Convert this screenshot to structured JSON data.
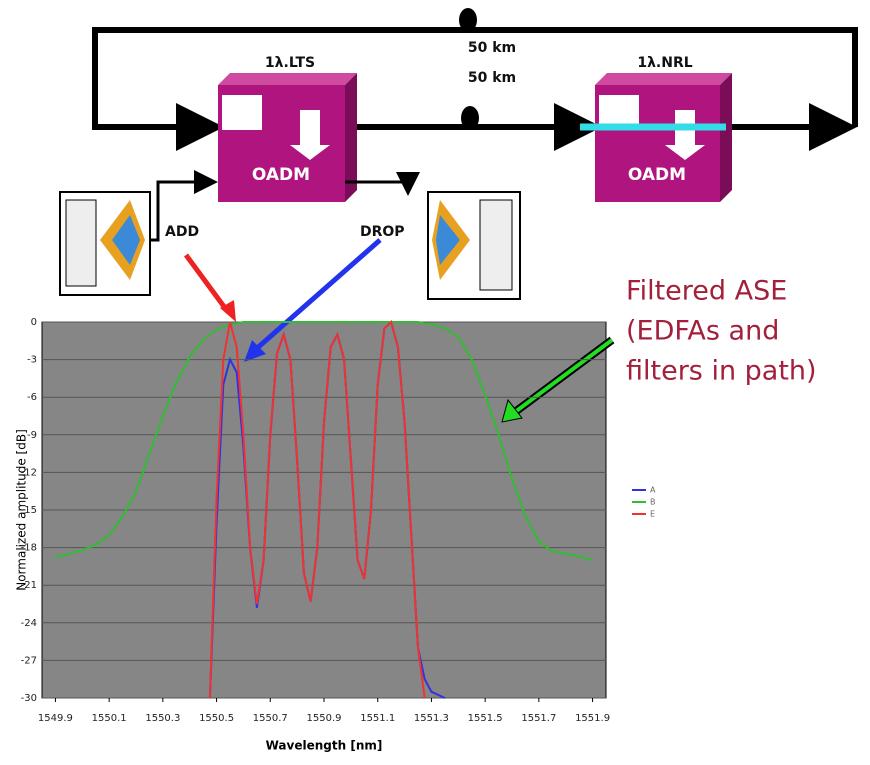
{
  "diagram": {
    "nodes": [
      {
        "title": "1λ.LTS",
        "label": "OADM"
      },
      {
        "title": "1λ.NRL",
        "label": "OADM"
      }
    ],
    "links": [
      "50 km",
      "50 km"
    ],
    "ports": [
      "ADD",
      "DROP"
    ],
    "annotation": [
      "Filtered ASE",
      "(EDFAs and",
      "filters in path)"
    ]
  },
  "chart_data": {
    "type": "line",
    "x_label": "Wavelength [nm]",
    "y_label": "Normalized amplitude [dB]",
    "xlim": [
      1549.85,
      1551.95
    ],
    "ylim": [
      -30,
      0
    ],
    "xticks": [
      1549.9,
      1550.1,
      1550.3,
      1550.5,
      1550.7,
      1550.9,
      1551.1,
      1551.3,
      1551.5,
      1551.7,
      1551.9
    ],
    "yticks": [
      0,
      -3,
      -6,
      -9,
      -12,
      -15,
      -18,
      -21,
      -24,
      -27,
      -30
    ],
    "grid": true,
    "legend": "right",
    "x": [
      1549.9,
      1549.95,
      1550,
      1550.05,
      1550.1,
      1550.15,
      1550.2,
      1550.25,
      1550.3,
      1550.35,
      1550.4,
      1550.45,
      1550.475,
      1550.5,
      1550.525,
      1550.55,
      1550.575,
      1550.6,
      1550.625,
      1550.65,
      1550.675,
      1550.7,
      1550.725,
      1550.75,
      1550.775,
      1550.8,
      1550.825,
      1550.85,
      1550.875,
      1550.9,
      1550.925,
      1550.95,
      1550.975,
      1551,
      1551.025,
      1551.05,
      1551.075,
      1551.1,
      1551.125,
      1551.15,
      1551.175,
      1551.2,
      1551.225,
      1551.25,
      1551.275,
      1551.3,
      1551.35,
      1551.4,
      1551.45,
      1551.5,
      1551.55,
      1551.6,
      1551.65,
      1551.7,
      1551.75,
      1551.8,
      1551.85,
      1551.9
    ],
    "series": [
      {
        "name": "A",
        "color": "#3333dd",
        "values": [
          null,
          null,
          null,
          null,
          null,
          null,
          null,
          null,
          null,
          null,
          null,
          null,
          -30,
          -16,
          -5,
          -3,
          -4,
          -10,
          -18,
          -22.8,
          -19,
          -9,
          -2.5,
          -1,
          -3,
          -11,
          -20,
          -22.3,
          -18,
          -8,
          -2,
          -1,
          -3,
          -11,
          -19,
          -20.5,
          -15,
          -5,
          -0.5,
          0,
          -2,
          -8,
          -17,
          -26,
          -28.5,
          -29.5,
          -30,
          null,
          null,
          null,
          null,
          null,
          null,
          null,
          null,
          null,
          null,
          null
        ]
      },
      {
        "name": "B",
        "color": "#33bb33",
        "values": [
          -18.8,
          -18.5,
          -18.2,
          -17.8,
          -17,
          -15.5,
          -13.5,
          -10.5,
          -7.5,
          -4.8,
          -2.8,
          -1.4,
          -1,
          -0.6,
          -0.4,
          -0.2,
          -0.1,
          0,
          0,
          0,
          0,
          0,
          0,
          0,
          0,
          0,
          0,
          0,
          0,
          0,
          0,
          0,
          0,
          0,
          0,
          0,
          0,
          0,
          0,
          0,
          0,
          0,
          0,
          0,
          -0.1,
          -0.2,
          -0.5,
          -1.2,
          -3,
          -5.8,
          -9,
          -12.5,
          -15.5,
          -17.5,
          -18.3,
          -18.5,
          -18.7,
          -19
        ]
      },
      {
        "name": "E",
        "color": "#ee3333",
        "values": [
          null,
          null,
          null,
          null,
          null,
          null,
          null,
          null,
          null,
          null,
          null,
          null,
          -30,
          -14,
          -3,
          0,
          -2,
          -9,
          -18,
          -22.5,
          -19,
          -9,
          -2.5,
          -1,
          -3,
          -11,
          -20,
          -22.3,
          -18,
          -8,
          -2,
          -1,
          -3,
          -11,
          -19,
          -20.5,
          -15,
          -5,
          -0.5,
          0,
          -2,
          -8,
          -17,
          -26,
          -30,
          null,
          null,
          null,
          null,
          null,
          null,
          null,
          null,
          null,
          null,
          null,
          null,
          null
        ]
      }
    ]
  }
}
